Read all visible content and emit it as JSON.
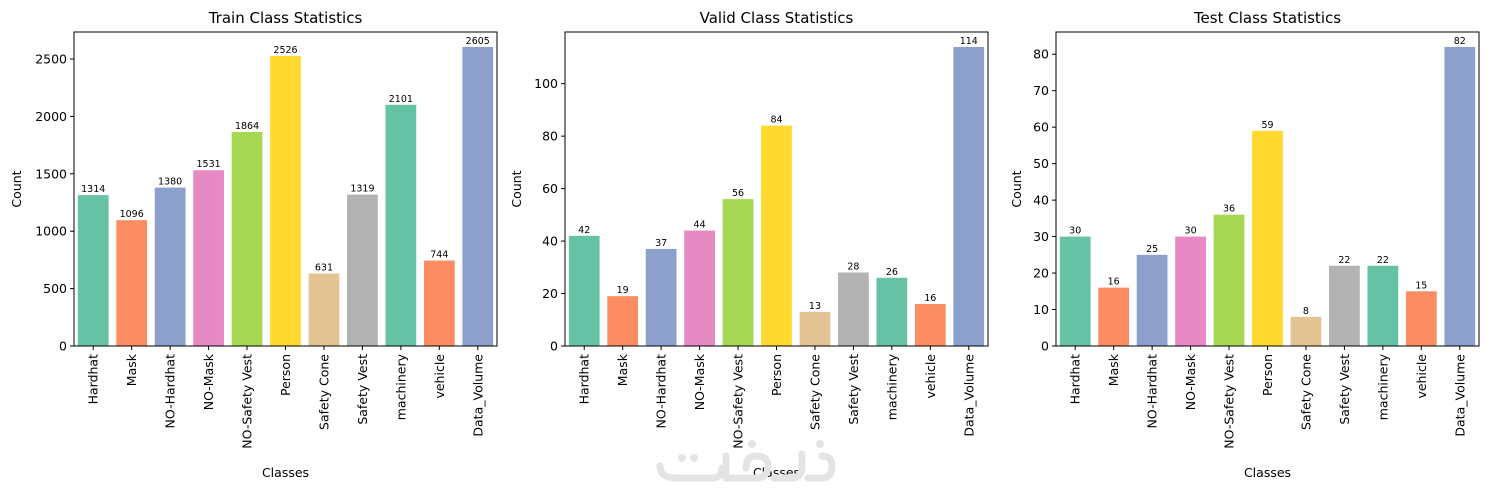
{
  "chart_data": [
    {
      "type": "bar",
      "title": "Train Class Statistics",
      "xlabel": "Classes",
      "ylabel": "Count",
      "ylim": [
        0,
        2735
      ],
      "yticks": [
        0,
        500,
        1000,
        1500,
        2000,
        2500
      ],
      "grid": false,
      "categories": [
        "Hardhat",
        "Mask",
        "NO-Hardhat",
        "NO-Mask",
        "NO-Safety Vest",
        "Person",
        "Safety Cone",
        "Safety Vest",
        "machinery",
        "vehicle",
        "Data_Volume"
      ],
      "values": [
        1314,
        1096,
        1380,
        1531,
        1864,
        2526,
        631,
        1319,
        2101,
        744,
        2605
      ],
      "value_labels": [
        "1314",
        "1096",
        "1380",
        "1531",
        "1864",
        "2526",
        "631",
        "1319",
        "2101",
        "744",
        "2605"
      ]
    },
    {
      "type": "bar",
      "title": "Valid Class Statistics",
      "xlabel": "Classes",
      "ylabel": "Count",
      "ylim": [
        0,
        119.7
      ],
      "yticks": [
        0,
        20,
        40,
        60,
        80,
        100
      ],
      "grid": false,
      "categories": [
        "Hardhat",
        "Mask",
        "NO-Hardhat",
        "NO-Mask",
        "NO-Safety Vest",
        "Person",
        "Safety Cone",
        "Safety Vest",
        "machinery",
        "vehicle",
        "Data_Volume"
      ],
      "values": [
        42,
        19,
        37,
        44,
        56,
        84,
        13,
        28,
        26,
        16,
        114
      ],
      "value_labels": [
        "42",
        "19",
        "37",
        "44",
        "56",
        "84",
        "13",
        "28",
        "26",
        "16",
        "114"
      ]
    },
    {
      "type": "bar",
      "title": "Test Class Statistics",
      "xlabel": "Classes",
      "ylabel": "Count",
      "ylim": [
        0,
        86.1
      ],
      "yticks": [
        0,
        10,
        20,
        30,
        40,
        50,
        60,
        70,
        80
      ],
      "grid": false,
      "categories": [
        "Hardhat",
        "Mask",
        "NO-Hardhat",
        "NO-Mask",
        "NO-Safety Vest",
        "Person",
        "Safety Cone",
        "Safety Vest",
        "machinery",
        "vehicle",
        "Data_Volume"
      ],
      "values": [
        30,
        16,
        25,
        30,
        36,
        59,
        8,
        22,
        22,
        15,
        82
      ],
      "value_labels": [
        "30",
        "16",
        "25",
        "30",
        "36",
        "59",
        "8",
        "22",
        "22",
        "15",
        "82"
      ]
    }
  ],
  "colors": {
    "bars": [
      "#66c2a5",
      "#fc8d62",
      "#8da0cb",
      "#e78ac3",
      "#a6d854",
      "#ffd92f",
      "#e5c494",
      "#b3b3b3",
      "#66c2a5",
      "#fc8d62",
      "#8da0cb"
    ],
    "watermark": "#e4e4e4"
  },
  "watermark": {
    "icon": "persian-logo-watermark-icon"
  }
}
